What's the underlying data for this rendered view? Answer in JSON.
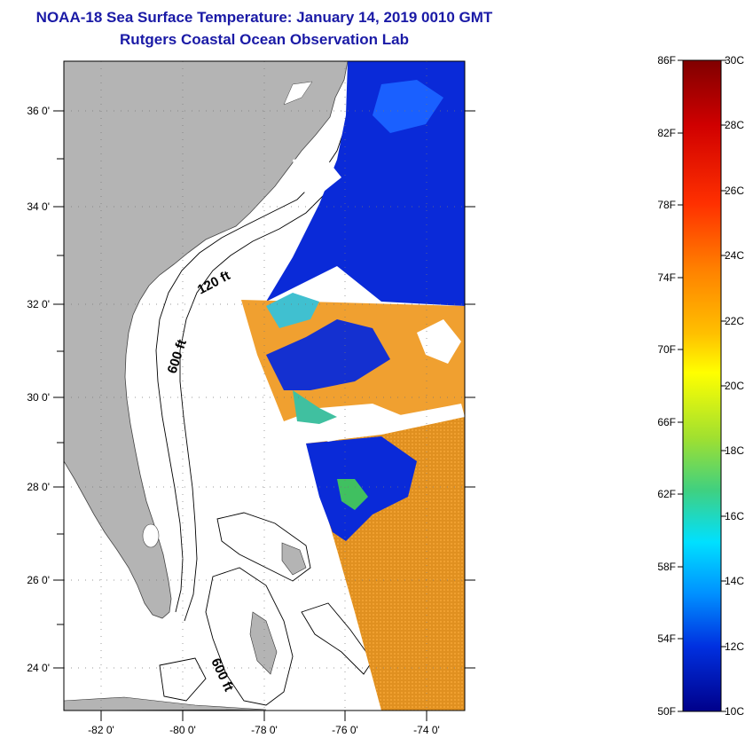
{
  "header": {
    "title": "NOAA-18 Sea Surface Temperature:  January 14, 2019 0010 GMT",
    "subtitle": "Rutgers Coastal Ocean Observation Lab"
  },
  "map": {
    "lat_labels": [
      "36 0'",
      "34 0'",
      "32 0'",
      "30 0'",
      "28 0'",
      "26 0'",
      "24 0'"
    ],
    "lon_labels": [
      "-82 0'",
      "-80 0'",
      "-78 0'",
      "-76 0'",
      "-74 0'"
    ],
    "contour_labels": [
      "120 ft",
      "600 ft",
      "600 ft"
    ],
    "colors": {
      "land": "#b4b4b4",
      "ocean": "#ffffff"
    }
  },
  "colorbar": {
    "f_labels": [
      "86F",
      "82F",
      "78F",
      "74F",
      "70F",
      "66F",
      "62F",
      "58F",
      "54F",
      "50F"
    ],
    "c_labels": [
      "30C",
      "28C",
      "26C",
      "24C",
      "22C",
      "20C",
      "18C",
      "16C",
      "14C",
      "12C",
      "10C"
    ]
  }
}
